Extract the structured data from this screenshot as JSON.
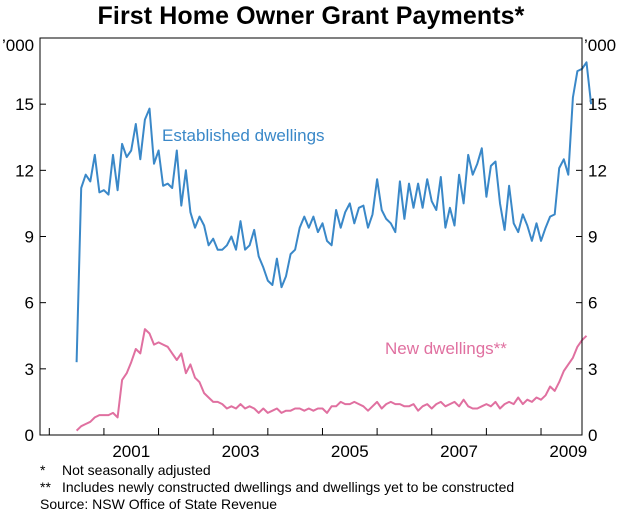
{
  "chart_data": {
    "type": "line",
    "title": "First Home Owner Grant Payments*",
    "units_left": "’000",
    "units_right": "’000",
    "xlabel": "",
    "ylabel": "",
    "xlim": [
      1999.83,
      2009.75
    ],
    "ylim": [
      0,
      18
    ],
    "y_ticks": [
      0,
      3,
      6,
      9,
      12,
      15
    ],
    "x_tick_positions": [
      2000,
      2001,
      2002,
      2003,
      2004,
      2005,
      2006,
      2007,
      2008,
      2009
    ],
    "x_labels": [
      "2001",
      "2003",
      "2005",
      "2007",
      "2009"
    ],
    "x_label_years": [
      2001,
      2003,
      2005,
      2007,
      2009
    ],
    "grid": false,
    "series": [
      {
        "name": "Established dwellings",
        "color": "#3a88c8",
        "x_start": 2000.5,
        "x_step": 0.08333,
        "values": [
          3.3,
          11.2,
          11.8,
          11.5,
          12.7,
          11.0,
          11.1,
          10.9,
          12.7,
          11.1,
          13.2,
          12.6,
          12.9,
          14.1,
          12.5,
          14.3,
          14.8,
          12.3,
          12.9,
          11.3,
          11.4,
          11.2,
          12.9,
          10.4,
          12.0,
          10.1,
          9.4,
          9.9,
          9.5,
          8.6,
          8.9,
          8.4,
          8.4,
          8.6,
          9.0,
          8.4,
          9.7,
          8.4,
          8.6,
          9.3,
          8.1,
          7.6,
          7.0,
          6.8,
          8.0,
          6.7,
          7.2,
          8.2,
          8.4,
          9.4,
          9.9,
          9.4,
          9.9,
          9.2,
          9.6,
          8.8,
          8.6,
          10.2,
          9.4,
          10.1,
          10.5,
          9.6,
          10.3,
          10.4,
          9.4,
          10.0,
          11.6,
          10.2,
          9.8,
          9.6,
          9.2,
          11.5,
          9.8,
          11.4,
          10.3,
          11.4,
          10.3,
          11.6,
          10.6,
          10.2,
          11.7,
          9.4,
          10.3,
          9.5,
          11.8,
          10.5,
          12.7,
          11.8,
          12.3,
          13.0,
          10.8,
          12.2,
          12.4,
          10.5,
          9.3,
          11.3,
          9.6,
          9.2,
          10.0,
          9.5,
          8.8,
          9.6,
          8.8,
          9.4,
          9.9,
          10.0,
          12.1,
          12.5,
          11.8,
          15.3,
          16.5,
          16.6,
          16.9,
          15.0
        ]
      },
      {
        "name": "New dwellings**",
        "color": "#e070a0",
        "x_start": 2000.5,
        "x_step": 0.08333,
        "values": [
          0.2,
          0.4,
          0.5,
          0.6,
          0.8,
          0.9,
          0.9,
          0.9,
          1.0,
          0.8,
          2.5,
          2.8,
          3.3,
          3.9,
          3.7,
          4.8,
          4.6,
          4.1,
          4.2,
          4.1,
          4.0,
          3.7,
          3.4,
          3.7,
          2.8,
          3.2,
          2.6,
          2.4,
          1.9,
          1.7,
          1.5,
          1.5,
          1.4,
          1.2,
          1.3,
          1.2,
          1.4,
          1.2,
          1.3,
          1.2,
          1.0,
          1.2,
          1.0,
          1.1,
          1.2,
          1.0,
          1.1,
          1.1,
          1.2,
          1.2,
          1.1,
          1.2,
          1.1,
          1.2,
          1.2,
          1.0,
          1.3,
          1.3,
          1.5,
          1.4,
          1.4,
          1.5,
          1.4,
          1.3,
          1.1,
          1.3,
          1.5,
          1.2,
          1.4,
          1.5,
          1.4,
          1.4,
          1.3,
          1.3,
          1.4,
          1.1,
          1.3,
          1.4,
          1.2,
          1.4,
          1.5,
          1.3,
          1.4,
          1.5,
          1.3,
          1.6,
          1.3,
          1.2,
          1.2,
          1.3,
          1.4,
          1.3,
          1.5,
          1.2,
          1.4,
          1.5,
          1.4,
          1.7,
          1.4,
          1.6,
          1.5,
          1.7,
          1.6,
          1.8,
          2.2,
          2.0,
          2.4,
          2.9,
          3.2,
          3.5,
          4.0,
          4.3,
          4.5
        ]
      }
    ],
    "notes": [
      {
        "mark": "*",
        "text": "Not seasonally adjusted"
      },
      {
        "mark": "**",
        "text": "Includes newly constructed dwellings and dwellings yet to be constructed"
      }
    ],
    "source": "Source: NSW Office of State Revenue"
  }
}
